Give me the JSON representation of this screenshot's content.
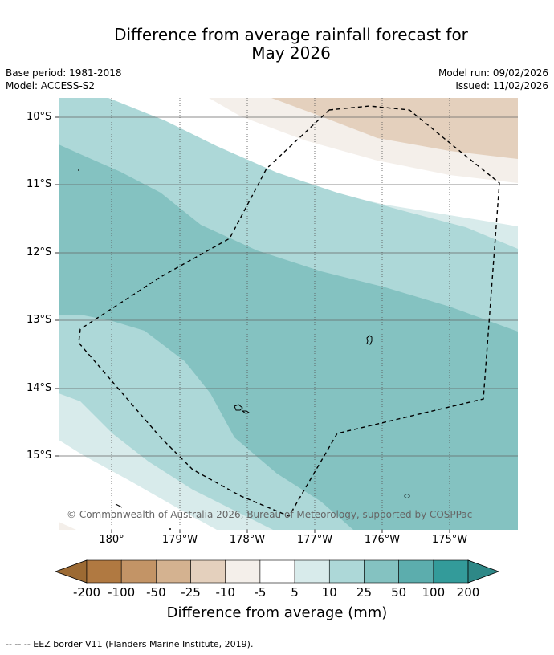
{
  "title_line1": "Difference from average rainfall forecast for",
  "title_line2": "May 2026",
  "meta": {
    "base_period": "Base period: 1981-2018",
    "model": "Model: ACCESS-S2",
    "model_run": "Model run: 09/02/2026",
    "issued": "Issued: 11/02/2026"
  },
  "lat_labels": [
    "10°S",
    "11°S",
    "12°S",
    "13°S",
    "14°S",
    "15°S"
  ],
  "lon_labels": [
    "180°",
    "179°W",
    "178°W",
    "177°W",
    "176°W",
    "175°W"
  ],
  "copyright": "© Commonwealth of Australia 2026, Bureau of Meteorology, supported by COSPPac",
  "colorbar": {
    "ticks": [
      "-200",
      "-100",
      "-50",
      "-25",
      "-10",
      "-5",
      "5",
      "10",
      "25",
      "50",
      "100",
      "200"
    ],
    "colors": [
      "#b07941",
      "#c39466",
      "#d4b290",
      "#e4d0bd",
      "#f4efea",
      "#ffffff",
      "#d8ebeb",
      "#add8d8",
      "#84c2c1",
      "#5cadad",
      "#339b9a"
    ],
    "under_color": "#9c6a33",
    "over_color": "#2e8887",
    "label": "Difference from average (mm)"
  },
  "footer": "--  --  -- EEZ border V11 (Flanders Marine Institute, 2019)."
}
